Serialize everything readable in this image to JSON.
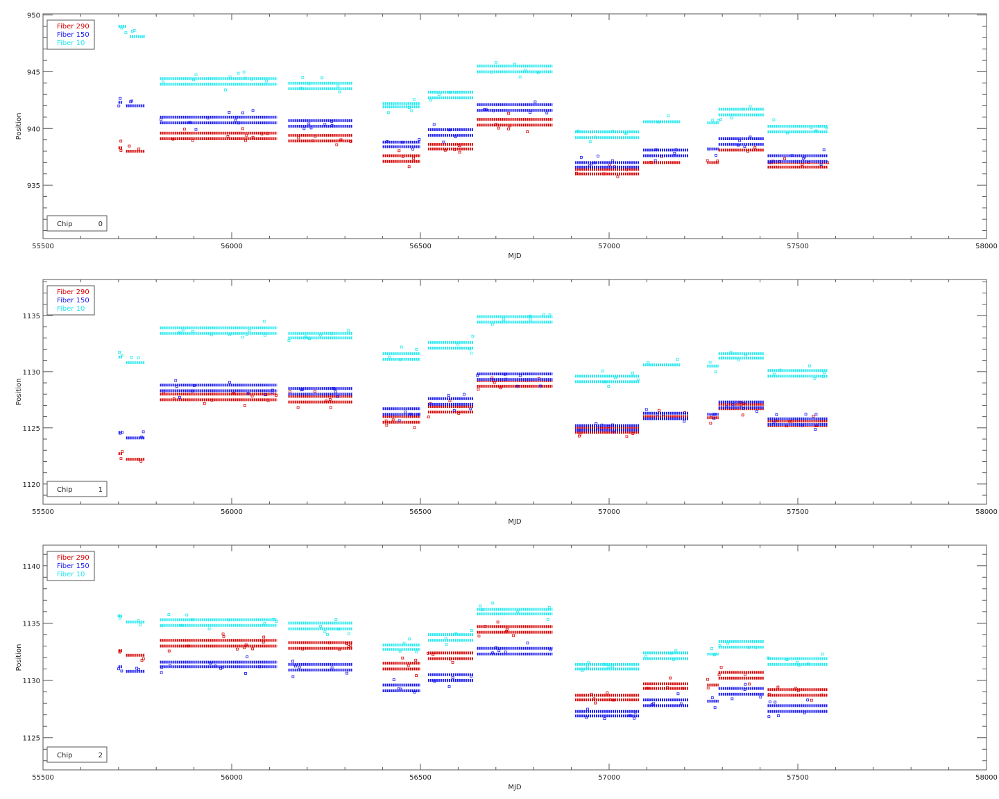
{
  "colors": {
    "fiber290": "#d40000",
    "fiber150": "#1a1aee",
    "fiber10": "#22e8ee",
    "axis": "#555555"
  },
  "chart_data": [
    {
      "type": "scatter",
      "title": "",
      "xlabel": "MJD",
      "ylabel": "Position",
      "xlim": [
        55500,
        58000
      ],
      "ylim": [
        930.3,
        950.1
      ],
      "xticks": [
        55500,
        56000,
        56500,
        57000,
        57500,
        58000
      ],
      "yticks": [
        935,
        940,
        945,
        950
      ],
      "chip_label": "Chip",
      "chip_value": "0",
      "legend": [
        "Fiber 290",
        "Fiber 150",
        "Fiber 10"
      ],
      "legend_position": "top-left",
      "series": [
        {
          "name": "Fiber 290",
          "color": "#d40000",
          "segments": [
            [
              55700,
              55710,
              938.3
            ],
            [
              55720,
              55770,
              938.0
            ],
            [
              55810,
              56120,
              939.6
            ],
            [
              55810,
              56120,
              939.1
            ],
            [
              56150,
              56320,
              939.4
            ],
            [
              56150,
              56320,
              938.9
            ],
            [
              56400,
              56500,
              937.6
            ],
            [
              56400,
              56500,
              937.1
            ],
            [
              56520,
              56640,
              938.6
            ],
            [
              56520,
              56640,
              938.2
            ],
            [
              56650,
              56850,
              940.8
            ],
            [
              56650,
              56850,
              940.3
            ],
            [
              56910,
              57080,
              936.4
            ],
            [
              56910,
              57080,
              936.0
            ],
            [
              57090,
              57190,
              937.0
            ],
            [
              57260,
              57290,
              937.0
            ],
            [
              57290,
              57410,
              938.1
            ],
            [
              57420,
              57580,
              937.0
            ],
            [
              57420,
              57580,
              936.6
            ]
          ]
        },
        {
          "name": "Fiber 150",
          "color": "#1a1aee",
          "segments": [
            [
              55700,
              55710,
              942.3
            ],
            [
              55720,
              55770,
              942.0
            ],
            [
              55810,
              56120,
              941.0
            ],
            [
              55810,
              56120,
              940.5
            ],
            [
              56150,
              56320,
              940.7
            ],
            [
              56150,
              56320,
              940.2
            ],
            [
              56400,
              56500,
              938.8
            ],
            [
              56400,
              56500,
              938.4
            ],
            [
              56520,
              56640,
              939.9
            ],
            [
              56520,
              56640,
              939.4
            ],
            [
              56650,
              56850,
              942.1
            ],
            [
              56650,
              56850,
              941.6
            ],
            [
              56910,
              57080,
              937.0
            ],
            [
              56910,
              57080,
              936.6
            ],
            [
              57090,
              57210,
              938.1
            ],
            [
              57090,
              57210,
              937.6
            ],
            [
              57260,
              57290,
              938.2
            ],
            [
              57290,
              57410,
              939.1
            ],
            [
              57290,
              57410,
              938.6
            ],
            [
              57420,
              57580,
              937.6
            ],
            [
              57420,
              57580,
              937.1
            ]
          ]
        },
        {
          "name": "Fiber 10",
          "color": "#22e8ee",
          "segments": [
            [
              55700,
              55720,
              949.0
            ],
            [
              55730,
              55770,
              948.1
            ],
            [
              55810,
              56120,
              944.4
            ],
            [
              55810,
              56120,
              943.9
            ],
            [
              56150,
              56320,
              944.0
            ],
            [
              56150,
              56320,
              943.5
            ],
            [
              56400,
              56500,
              942.2
            ],
            [
              56400,
              56500,
              941.9
            ],
            [
              56520,
              56640,
              943.2
            ],
            [
              56520,
              56640,
              942.7
            ],
            [
              56650,
              56850,
              945.5
            ],
            [
              56650,
              56850,
              945.0
            ],
            [
              56910,
              57080,
              939.7
            ],
            [
              56910,
              57080,
              939.2
            ],
            [
              57090,
              57190,
              940.6
            ],
            [
              57260,
              57290,
              940.5
            ],
            [
              57290,
              57410,
              941.7
            ],
            [
              57290,
              57410,
              941.2
            ],
            [
              57420,
              57580,
              940.2
            ],
            [
              57420,
              57580,
              939.7
            ]
          ]
        }
      ]
    },
    {
      "type": "scatter",
      "title": "",
      "xlabel": "MJD",
      "ylabel": "Position",
      "xlim": [
        55500,
        58000
      ],
      "ylim": [
        1118.2,
        1138.2
      ],
      "xticks": [
        55500,
        56000,
        56500,
        57000,
        57500,
        58000
      ],
      "yticks": [
        1120,
        1125,
        1130,
        1135
      ],
      "chip_label": "Chip",
      "chip_value": "1",
      "legend": [
        "Fiber 290",
        "Fiber 150",
        "Fiber 10"
      ],
      "legend_position": "top-left",
      "series": [
        {
          "name": "Fiber 290",
          "color": "#d40000",
          "segments": [
            [
              55700,
              55710,
              1122.7
            ],
            [
              55720,
              55770,
              1122.2
            ],
            [
              55810,
              56120,
              1128.0
            ],
            [
              55810,
              56120,
              1127.5
            ],
            [
              56150,
              56320,
              1127.8
            ],
            [
              56150,
              56320,
              1127.3
            ],
            [
              56400,
              56500,
              1126.0
            ],
            [
              56400,
              56500,
              1125.5
            ],
            [
              56520,
              56640,
              1126.9
            ],
            [
              56520,
              56640,
              1126.4
            ],
            [
              56650,
              56850,
              1129.2
            ],
            [
              56650,
              56850,
              1128.7
            ],
            [
              56910,
              57080,
              1125.0
            ],
            [
              56910,
              57080,
              1124.6
            ],
            [
              57090,
              57210,
              1126.0
            ],
            [
              57260,
              57290,
              1125.9
            ],
            [
              57290,
              57410,
              1127.1
            ],
            [
              57290,
              57410,
              1126.7
            ],
            [
              57420,
              57580,
              1125.6
            ],
            [
              57420,
              57580,
              1125.2
            ]
          ]
        },
        {
          "name": "Fiber 150",
          "color": "#1a1aee",
          "segments": [
            [
              55700,
              55710,
              1124.6
            ],
            [
              55720,
              55770,
              1124.1
            ],
            [
              55810,
              56120,
              1128.8
            ],
            [
              55810,
              56120,
              1128.3
            ],
            [
              56150,
              56320,
              1128.5
            ],
            [
              56150,
              56320,
              1128.0
            ],
            [
              56400,
              56500,
              1126.7
            ],
            [
              56400,
              56500,
              1126.2
            ],
            [
              56520,
              56640,
              1127.6
            ],
            [
              56520,
              56640,
              1127.1
            ],
            [
              56650,
              56850,
              1129.8
            ],
            [
              56650,
              56850,
              1129.3
            ],
            [
              56910,
              57080,
              1125.2
            ],
            [
              56910,
              57080,
              1124.8
            ],
            [
              57090,
              57210,
              1126.3
            ],
            [
              57090,
              57210,
              1125.8
            ],
            [
              57260,
              57290,
              1126.2
            ],
            [
              57290,
              57410,
              1127.3
            ],
            [
              57290,
              57410,
              1126.8
            ],
            [
              57420,
              57580,
              1125.8
            ],
            [
              57420,
              57580,
              1125.3
            ]
          ]
        },
        {
          "name": "Fiber 10",
          "color": "#22e8ee",
          "segments": [
            [
              55700,
              55710,
              1131.3
            ],
            [
              55720,
              55770,
              1130.8
            ],
            [
              55810,
              56120,
              1133.9
            ],
            [
              55810,
              56120,
              1133.4
            ],
            [
              56150,
              56320,
              1133.4
            ],
            [
              56150,
              56320,
              1133.0
            ],
            [
              56400,
              56500,
              1131.6
            ],
            [
              56400,
              56500,
              1131.1
            ],
            [
              56520,
              56640,
              1132.6
            ],
            [
              56520,
              56640,
              1132.1
            ],
            [
              56650,
              56850,
              1134.9
            ],
            [
              56650,
              56850,
              1134.4
            ],
            [
              56910,
              57080,
              1129.6
            ],
            [
              56910,
              57080,
              1129.1
            ],
            [
              57090,
              57190,
              1130.6
            ],
            [
              57260,
              57290,
              1130.5
            ],
            [
              57290,
              57410,
              1131.6
            ],
            [
              57290,
              57410,
              1131.2
            ],
            [
              57420,
              57580,
              1130.1
            ],
            [
              57420,
              57580,
              1129.6
            ]
          ]
        }
      ]
    },
    {
      "type": "scatter",
      "title": "",
      "xlabel": "MJD",
      "ylabel": "Position",
      "xlim": [
        55500,
        58000
      ],
      "ylim": [
        1122.2,
        1141.8
      ],
      "xticks": [
        55500,
        56000,
        56500,
        57000,
        57500,
        58000
      ],
      "yticks": [
        1125,
        1130,
        1135,
        1140
      ],
      "chip_label": "Chip",
      "chip_value": "2",
      "legend": [
        "Fiber 290",
        "Fiber 150",
        "Fiber 10"
      ],
      "legend_position": "top-left",
      "series": [
        {
          "name": "Fiber 290",
          "color": "#d40000",
          "segments": [
            [
              55700,
              55710,
              1132.6
            ],
            [
              55720,
              55770,
              1132.2
            ],
            [
              55810,
              56120,
              1133.5
            ],
            [
              55810,
              56120,
              1133.0
            ],
            [
              56150,
              56320,
              1133.3
            ],
            [
              56150,
              56320,
              1132.8
            ],
            [
              56400,
              56500,
              1131.5
            ],
            [
              56400,
              56500,
              1131.0
            ],
            [
              56520,
              56640,
              1132.4
            ],
            [
              56520,
              56640,
              1131.9
            ],
            [
              56650,
              56850,
              1134.7
            ],
            [
              56650,
              56850,
              1134.2
            ],
            [
              56910,
              57080,
              1128.7
            ],
            [
              56910,
              57080,
              1128.3
            ],
            [
              57090,
              57210,
              1129.7
            ],
            [
              57090,
              57210,
              1129.3
            ],
            [
              57260,
              57290,
              1129.6
            ],
            [
              57290,
              57410,
              1130.7
            ],
            [
              57290,
              57410,
              1130.2
            ],
            [
              57420,
              57580,
              1129.2
            ],
            [
              57420,
              57580,
              1128.7
            ]
          ]
        },
        {
          "name": "Fiber 150",
          "color": "#1a1aee",
          "segments": [
            [
              55700,
              55710,
              1131.2
            ],
            [
              55720,
              55770,
              1130.8
            ],
            [
              55810,
              56120,
              1131.6
            ],
            [
              55810,
              56120,
              1131.2
            ],
            [
              56150,
              56320,
              1131.4
            ],
            [
              56150,
              56320,
              1130.9
            ],
            [
              56400,
              56500,
              1129.6
            ],
            [
              56400,
              56500,
              1129.1
            ],
            [
              56520,
              56640,
              1130.5
            ],
            [
              56520,
              56640,
              1130.0
            ],
            [
              56650,
              56850,
              1132.8
            ],
            [
              56650,
              56850,
              1132.3
            ],
            [
              56910,
              57080,
              1127.3
            ],
            [
              56910,
              57080,
              1126.9
            ],
            [
              57090,
              57210,
              1128.3
            ],
            [
              57090,
              57210,
              1127.8
            ],
            [
              57260,
              57290,
              1128.2
            ],
            [
              57290,
              57410,
              1129.3
            ],
            [
              57290,
              57410,
              1128.8
            ],
            [
              57420,
              57580,
              1127.8
            ],
            [
              57420,
              57580,
              1127.3
            ]
          ]
        },
        {
          "name": "Fiber 10",
          "color": "#22e8ee",
          "segments": [
            [
              55700,
              55710,
              1135.6
            ],
            [
              55720,
              55770,
              1135.1
            ],
            [
              55810,
              56120,
              1135.3
            ],
            [
              55810,
              56120,
              1134.8
            ],
            [
              56150,
              56320,
              1135.0
            ],
            [
              56150,
              56320,
              1134.5
            ],
            [
              56400,
              56500,
              1133.1
            ],
            [
              56400,
              56500,
              1132.7
            ],
            [
              56520,
              56640,
              1134.0
            ],
            [
              56520,
              56640,
              1133.5
            ],
            [
              56650,
              56850,
              1136.2
            ],
            [
              56650,
              56850,
              1135.8
            ],
            [
              56910,
              57080,
              1131.4
            ],
            [
              56910,
              57080,
              1131.0
            ],
            [
              57090,
              57210,
              1132.4
            ],
            [
              57090,
              57210,
              1131.9
            ],
            [
              57260,
              57290,
              1132.3
            ],
            [
              57290,
              57410,
              1133.4
            ],
            [
              57290,
              57410,
              1132.9
            ],
            [
              57420,
              57580,
              1131.9
            ],
            [
              57420,
              57580,
              1131.4
            ]
          ]
        }
      ]
    }
  ]
}
